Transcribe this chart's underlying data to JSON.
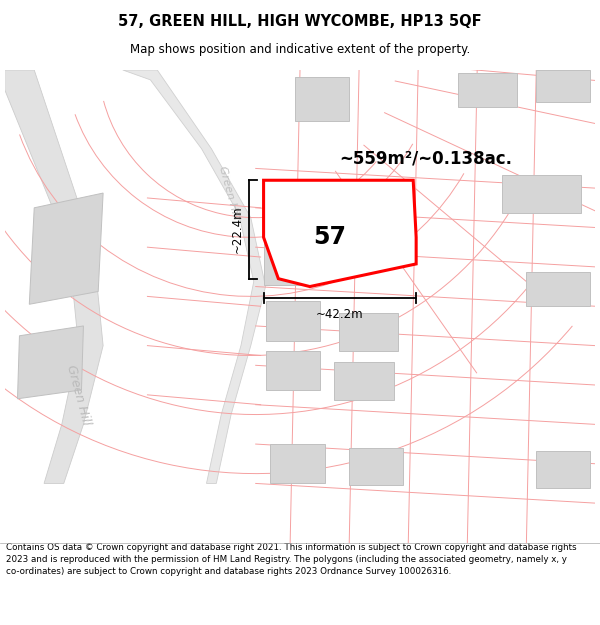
{
  "title": "57, GREEN HILL, HIGH WYCOMBE, HP13 5QF",
  "subtitle": "Map shows position and indicative extent of the property.",
  "footer": "Contains OS data © Crown copyright and database right 2021. This information is subject to Crown copyright and database rights 2023 and is reproduced with the permission of HM Land Registry. The polygons (including the associated geometry, namely x, y co-ordinates) are subject to Crown copyright and database rights 2023 Ordnance Survey 100026316.",
  "area_label": "~559m²/~0.138ac.",
  "number_label": "57",
  "width_label": "~42.2m",
  "height_label": "~22.4m",
  "map_bg": "#ffffff",
  "road_fill": "#e8e8e8",
  "road_edge": "#d0d0d0",
  "building_color": "#d6d6d6",
  "building_edge": "#c0c0c0",
  "plot_color": "#ff0000",
  "plot_fill": "#ffffff",
  "boundary_color": "#f5a0a0",
  "road_label_color": "#bbbbbb",
  "title_color": "#000000",
  "footer_color": "#000000",
  "fig_width": 6.0,
  "fig_height": 6.25
}
